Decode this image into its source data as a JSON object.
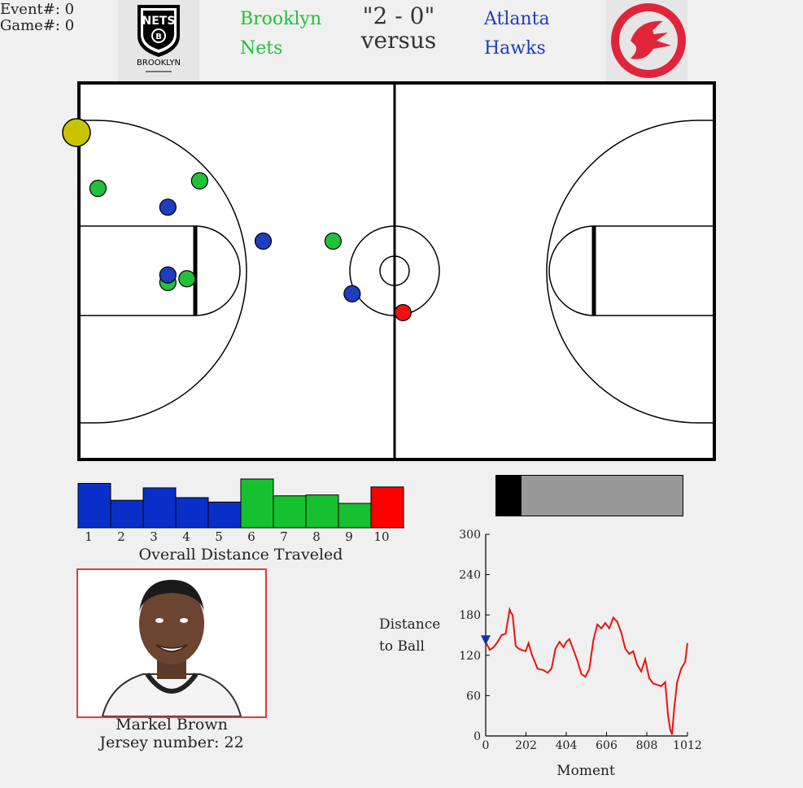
{
  "meta": {
    "event_label": "Event#: 0",
    "game_label": "Game#: 0"
  },
  "matchup": {
    "home_name_line1": "Brooklyn",
    "home_name_line2": "Nets",
    "away_name_line1": "Atlanta",
    "away_name_line2": "Hawks",
    "score": "\"2 - 0\"",
    "versus": "versus",
    "home_logo_text": "NETS",
    "home_logo_caption": "BROOKLYN",
    "home_logo_badge": "B",
    "home_color": "#22c13a",
    "away_color": "#1e3dbf"
  },
  "court": {
    "ball_color": "#c8c400",
    "ball": {
      "x": 0,
      "y": 15
    },
    "home_players": [
      {
        "x": 3,
        "y": 28
      },
      {
        "x": 19,
        "y": 26
      },
      {
        "x": 40,
        "y": 42
      },
      {
        "x": 17,
        "y": 52
      },
      {
        "x": 14,
        "y": 53
      }
    ],
    "away_players": [
      {
        "x": 14,
        "y": 33
      },
      {
        "x": 29,
        "y": 42
      },
      {
        "x": 14,
        "y": 51
      },
      {
        "x": 43,
        "y": 56
      }
    ],
    "highlight_player": {
      "x": 51,
      "y": 61
    },
    "home_dot_color": "#22c13a",
    "away_dot_color": "#1e3dbf",
    "highlight_color": "#ee1111"
  },
  "distance_bars": {
    "title": "Overall Distance Traveled",
    "labels": [
      "1",
      "2",
      "3",
      "4",
      "5",
      "6",
      "7",
      "8",
      "9",
      "10"
    ],
    "values": [
      1.0,
      0.62,
      0.9,
      0.68,
      0.58,
      1.1,
      0.72,
      0.74,
      0.55,
      0.92
    ],
    "colors": [
      "#0a2fc9",
      "#0a2fc9",
      "#0a2fc9",
      "#0a2fc9",
      "#0a2fc9",
      "#16c12f",
      "#16c12f",
      "#16c12f",
      "#16c12f",
      "#ff0000"
    ]
  },
  "player": {
    "name": "Markel Brown",
    "jersey": "Jersey number: 22"
  },
  "progress": {
    "fraction": 0.135
  },
  "chart_data": {
    "type": "line",
    "ylabel_line1": "Distance",
    "ylabel_line2": "to Ball",
    "xlabel": "Moment",
    "xlim": [
      0,
      1012
    ],
    "ylim": [
      0,
      300
    ],
    "xticks": [
      0,
      202,
      404,
      606,
      808,
      1012
    ],
    "yticks": [
      0,
      60,
      120,
      180,
      240,
      300
    ],
    "marker": {
      "x": 0,
      "y": 140,
      "color": "#1a2fae"
    },
    "series": [
      {
        "color": "#ee1111",
        "x": [
          0,
          20,
          40,
          60,
          80,
          100,
          110,
          120,
          125,
          135,
          150,
          165,
          180,
          200,
          215,
          230,
          260,
          290,
          310,
          330,
          350,
          370,
          390,
          405,
          420,
          440,
          460,
          480,
          500,
          520,
          540,
          560,
          580,
          600,
          620,
          640,
          660,
          680,
          700,
          720,
          740,
          760,
          780,
          800,
          820,
          840,
          860,
          880,
          900,
          915,
          925,
          935,
          945,
          960,
          980,
          1000,
          1012
        ],
        "y": [
          140,
          128,
          132,
          140,
          150,
          152,
          170,
          188,
          184,
          180,
          134,
          130,
          128,
          126,
          138,
          122,
          100,
          98,
          94,
          100,
          130,
          140,
          132,
          140,
          144,
          128,
          112,
          92,
          88,
          100,
          142,
          166,
          160,
          168,
          160,
          176,
          170,
          154,
          130,
          122,
          126,
          106,
          96,
          114,
          86,
          78,
          76,
          74,
          80,
          30,
          10,
          2,
          40,
          80,
          100,
          110,
          138
        ]
      }
    ]
  }
}
